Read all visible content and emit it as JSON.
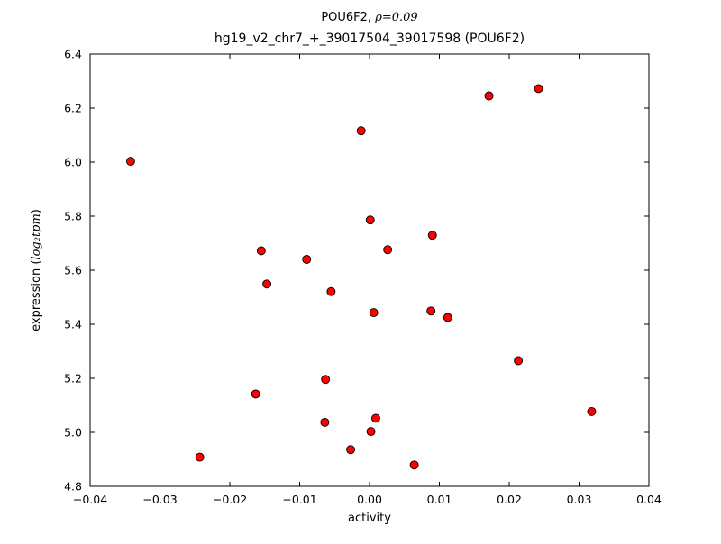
{
  "chart_data": {
    "type": "scatter",
    "title1_prefix": "POU6F2, ",
    "title1_math": "ρ=0.09",
    "title_line2": "hg19_v2_chr7_+_39017504_39017598 (POU6F2)",
    "xlabel": "activity",
    "ylabel_prefix": "expression (",
    "ylabel_math": "log₂tpm",
    "ylabel_suffix": ")",
    "xlim": [
      -0.04,
      0.04
    ],
    "ylim": [
      4.8,
      6.4
    ],
    "xtick_values": [
      -0.04,
      -0.03,
      -0.02,
      -0.01,
      0.0,
      0.01,
      0.02,
      0.03,
      0.04
    ],
    "xtick_labels": [
      "−0.04",
      "−0.03",
      "−0.02",
      "−0.01",
      "0.00",
      "0.01",
      "0.02",
      "0.03",
      "0.04"
    ],
    "ytick_values": [
      4.8,
      5.0,
      5.2,
      5.4,
      5.6,
      5.8,
      6.0,
      6.2,
      6.4
    ],
    "ytick_labels": [
      "4.8",
      "5.0",
      "5.2",
      "5.4",
      "5.6",
      "5.8",
      "6.0",
      "6.2",
      "6.4"
    ],
    "grid": false,
    "legend": null,
    "marker": {
      "shape": "circle",
      "fill": "#ff0000",
      "edge": "#000000",
      "radius": 4.5
    },
    "points": [
      [
        -0.0342,
        6.003
      ],
      [
        -0.0243,
        4.908
      ],
      [
        -0.0155,
        5.672
      ],
      [
        -0.0147,
        5.549
      ],
      [
        -0.0163,
        5.142
      ],
      [
        -0.009,
        5.64
      ],
      [
        -0.0055,
        5.521
      ],
      [
        -0.0063,
        5.196
      ],
      [
        -0.0064,
        5.037
      ],
      [
        -0.0027,
        4.936
      ],
      [
        -0.0012,
        6.116
      ],
      [
        0.0001,
        5.786
      ],
      [
        0.0006,
        5.443
      ],
      [
        0.0002,
        5.003
      ],
      [
        0.0009,
        5.052
      ],
      [
        0.0026,
        5.676
      ],
      [
        0.0064,
        4.879
      ],
      [
        0.0088,
        5.449
      ],
      [
        0.009,
        5.729
      ],
      [
        0.0112,
        5.425
      ],
      [
        0.0171,
        6.245
      ],
      [
        0.0213,
        5.265
      ],
      [
        0.0242,
        6.272
      ],
      [
        0.0318,
        5.077
      ]
    ]
  }
}
